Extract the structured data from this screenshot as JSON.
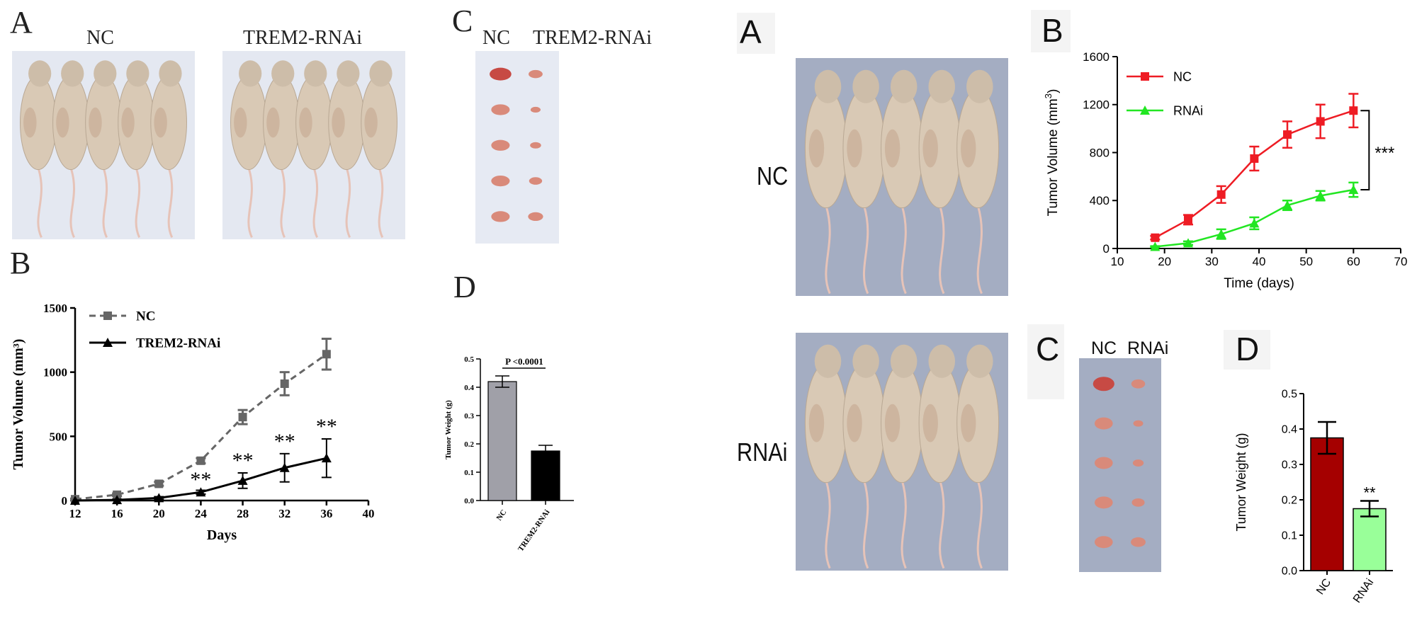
{
  "left_figure": {
    "panel_a": {
      "letter": "A",
      "labels": [
        "NC",
        "TREM2-RNAi"
      ]
    },
    "panel_c": {
      "letter": "C",
      "labels": [
        "NC",
        "TREM2-RNAi"
      ]
    },
    "panel_b": {
      "letter": "B"
    },
    "panel_d": {
      "letter": "D"
    }
  },
  "right_figure": {
    "panel_a": {
      "letter": "A",
      "row_labels": [
        "NC",
        "RNAi"
      ]
    },
    "panel_b": {
      "letter": "B"
    },
    "panel_c": {
      "letter": "C",
      "labels": [
        "NC",
        "RNAi"
      ]
    },
    "panel_d": {
      "letter": "D"
    }
  },
  "colors": {
    "photo_bg": "#e5e9f2",
    "photo_bg_right": "#9ea7bd",
    "mouse": "#d9c9b5",
    "tumor": "#d98a7a",
    "nc_red": "#ee1c24",
    "rnai_green": "#22e622",
    "bar_dark_red": "#a50000",
    "bar_light_green": "#99ff99",
    "bar_gray": "#a0a0a8"
  },
  "chart_data": [
    {
      "id": "left-B",
      "type": "line",
      "title": "",
      "xlabel": "Days",
      "ylabel": "Tumor Volume (mm³)",
      "xlim": [
        12,
        40
      ],
      "ylim": [
        0,
        1500
      ],
      "x_ticks": [
        "12",
        "16",
        "20",
        "24",
        "28",
        "32",
        "36",
        "40"
      ],
      "y_ticks": [
        "0",
        "500",
        "1000",
        "1500"
      ],
      "legend": "top-left",
      "series": [
        {
          "name": "NC",
          "x": [
            12,
            16,
            20,
            24,
            28,
            32,
            36
          ],
          "values": [
            10,
            45,
            130,
            310,
            650,
            910,
            1140
          ],
          "err": [
            5,
            10,
            15,
            20,
            55,
            90,
            120
          ]
        },
        {
          "name": "TREM2-RNAi",
          "x": [
            12,
            16,
            20,
            24,
            28,
            32,
            36
          ],
          "values": [
            0,
            5,
            20,
            65,
            155,
            255,
            330
          ],
          "err": [
            0,
            5,
            10,
            15,
            60,
            110,
            150
          ]
        }
      ],
      "annotations": [
        "**",
        "**",
        "**",
        "**"
      ]
    },
    {
      "id": "left-D",
      "type": "bar",
      "title": "",
      "xlabel": "",
      "ylabel": "Tumor Weight (g)",
      "ylim": [
        0,
        0.5
      ],
      "y_ticks": [
        "0.0",
        "0.1",
        "0.2",
        "0.3",
        "0.4",
        "0.5"
      ],
      "categories": [
        "NC",
        "TREM2-RNAi"
      ],
      "values": [
        0.42,
        0.175
      ],
      "err": [
        0.02,
        0.02
      ],
      "annotation": "P <0.0001"
    },
    {
      "id": "right-B",
      "type": "line",
      "title": "",
      "xlabel": "Time (days)",
      "ylabel": "Tumor Volume (mm",
      "ylabel_sup": "3",
      "ylabel_close": ")",
      "xlim": [
        10,
        70
      ],
      "ylim": [
        0,
        1600
      ],
      "x_ticks": [
        "10",
        "20",
        "30",
        "40",
        "50",
        "60",
        "70"
      ],
      "y_ticks": [
        "0",
        "400",
        "800",
        "1200",
        "1600"
      ],
      "legend": "top-left",
      "series": [
        {
          "name": "NC",
          "x": [
            18,
            25,
            32,
            39,
            46,
            53,
            60
          ],
          "values": [
            90,
            240,
            450,
            750,
            950,
            1060,
            1150
          ],
          "err": [
            15,
            40,
            70,
            100,
            110,
            140,
            140
          ]
        },
        {
          "name": "RNAi",
          "x": [
            18,
            25,
            32,
            39,
            46,
            53,
            60
          ],
          "values": [
            15,
            45,
            120,
            210,
            360,
            440,
            490
          ],
          "err": [
            5,
            15,
            40,
            50,
            40,
            40,
            60
          ]
        }
      ],
      "annotation": "***"
    },
    {
      "id": "right-D",
      "type": "bar",
      "title": "",
      "xlabel": "",
      "ylabel": "Tumor Weight (g)",
      "ylim": [
        0,
        0.5
      ],
      "y_ticks": [
        "0.0",
        "0.1",
        "0.2",
        "0.3",
        "0.4",
        "0.5"
      ],
      "categories": [
        "NC",
        "RNAi"
      ],
      "values": [
        0.375,
        0.175
      ],
      "err": [
        0.045,
        0.022
      ],
      "annotation": "**"
    }
  ]
}
